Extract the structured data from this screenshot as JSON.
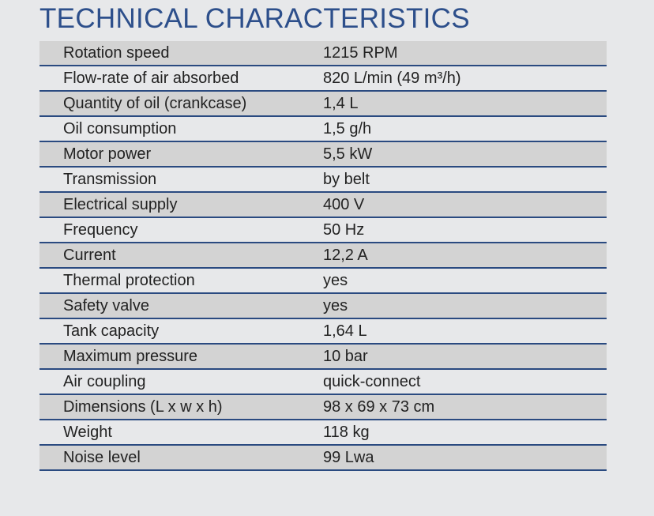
{
  "header": {
    "title": "TECHNICAL CHARACTERISTICS"
  },
  "table": {
    "rows": [
      [
        "Rotation speed",
        "1215 RPM"
      ],
      [
        "Flow-rate of air absorbed",
        "820 L/min (49 m³/h)"
      ],
      [
        "Quantity of oil (crankcase)",
        "1,4 L"
      ],
      [
        "Oil consumption",
        "1,5 g/h"
      ],
      [
        "Motor power",
        "5,5 kW"
      ],
      [
        "Transmission",
        "by belt"
      ],
      [
        "Electrical supply",
        "400 V"
      ],
      [
        "Frequency",
        "50 Hz"
      ],
      [
        "Current",
        "12,2 A"
      ],
      [
        "Thermal protection",
        "yes"
      ],
      [
        "Safety valve",
        "yes"
      ],
      [
        "Tank capacity",
        "1,64 L"
      ],
      [
        "Maximum pressure",
        "10 bar"
      ],
      [
        "Air coupling",
        "quick-connect"
      ],
      [
        "Dimensions (L x w x h)",
        "98 x 69 x 73 cm"
      ],
      [
        "Weight",
        "118 kg"
      ],
      [
        "Noise level",
        "99 Lwa"
      ]
    ]
  }
}
